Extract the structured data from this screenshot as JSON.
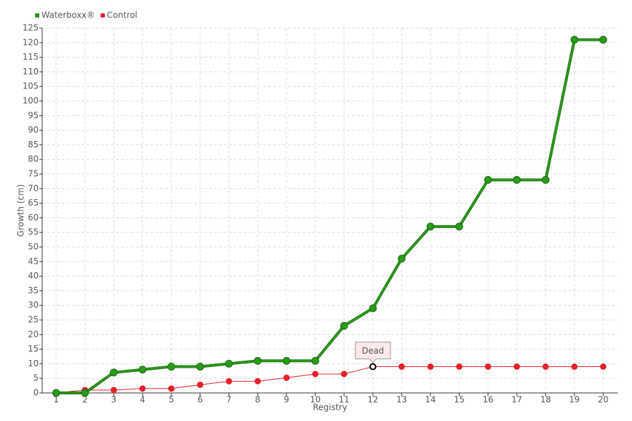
{
  "chart_data": {
    "type": "line",
    "x_label": "Registry",
    "y_label": "Growth (cm)",
    "categories": [
      "1",
      "2",
      "3",
      "4",
      "5",
      "6",
      "7",
      "8",
      "9",
      "10",
      "11",
      "12",
      "13",
      "14",
      "15",
      "16",
      "17",
      "18",
      "19",
      "20"
    ],
    "series": [
      {
        "name": "Waterboxx®",
        "color": "#2a9a1a",
        "values": [
          0,
          0,
          7,
          8,
          9,
          9,
          10,
          11,
          11,
          11,
          23,
          29,
          46,
          57,
          57,
          73,
          73,
          73,
          121,
          121
        ]
      },
      {
        "name": "Control",
        "color": "#e8202a",
        "values": [
          0,
          1,
          1,
          1.5,
          1.5,
          2.8,
          4,
          4,
          5.2,
          6.5,
          6.5,
          9,
          9,
          9,
          9,
          9,
          9,
          9,
          9,
          9
        ]
      }
    ],
    "annotations": [
      {
        "text": "Dead",
        "series": "Control",
        "category": "12"
      }
    ],
    "ylim": [
      0,
      125
    ],
    "yticks": [
      0,
      5,
      10,
      15,
      20,
      25,
      30,
      35,
      40,
      45,
      50,
      55,
      60,
      65,
      70,
      75,
      80,
      85,
      90,
      95,
      100,
      105,
      110,
      115,
      120,
      125
    ],
    "grid": true,
    "legend": "top-left"
  }
}
